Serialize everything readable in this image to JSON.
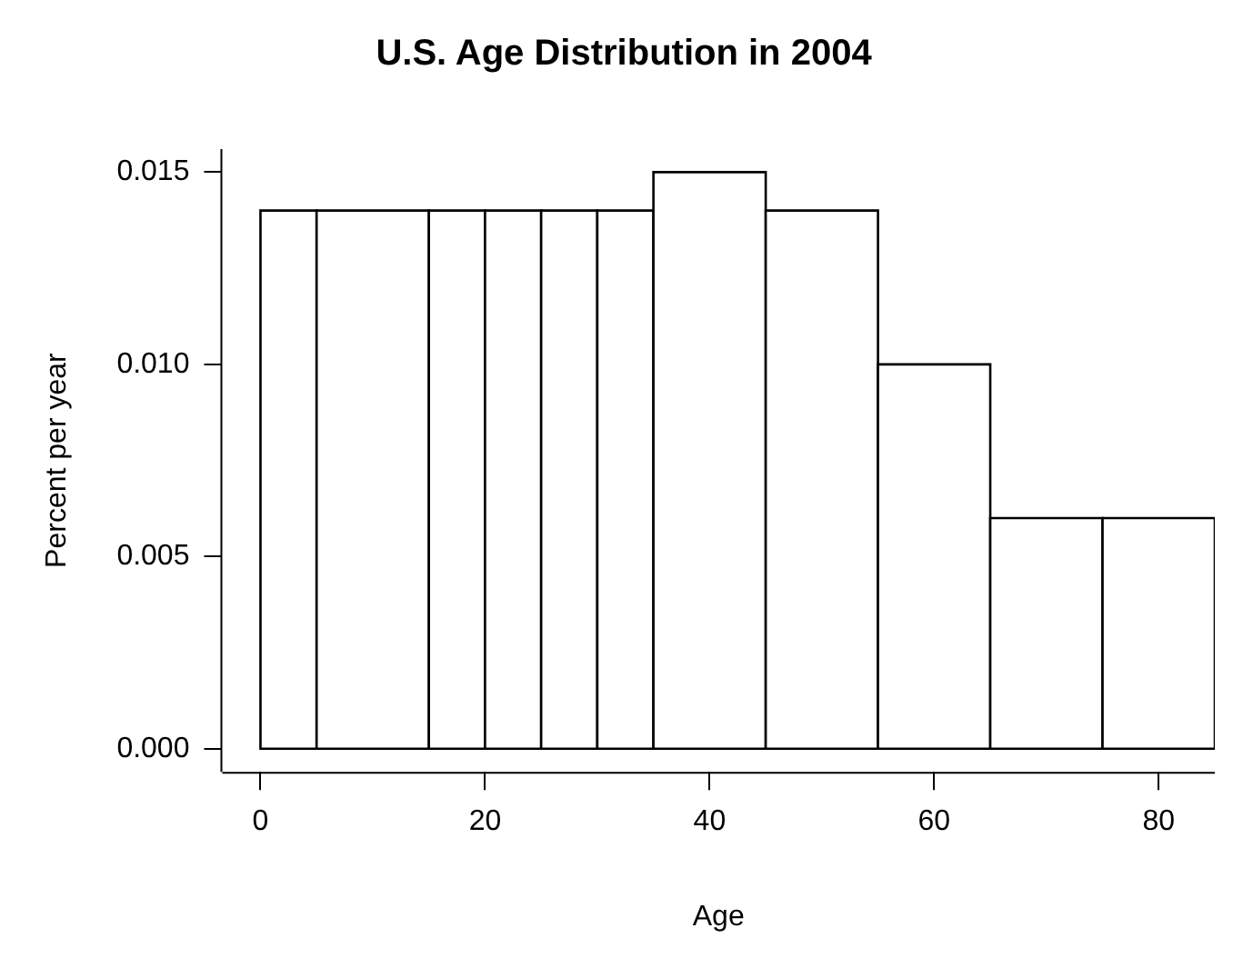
{
  "chart_data": {
    "type": "histogram",
    "title": "U.S. Age Distribution in 2004",
    "xlabel": "Age",
    "ylabel": "Percent per year",
    "bins": [
      0,
      5,
      15,
      20,
      25,
      30,
      35,
      45,
      55,
      65,
      75,
      85
    ],
    "values": [
      0.014,
      0.014,
      0.014,
      0.014,
      0.014,
      0.014,
      0.015,
      0.014,
      0.01,
      0.006,
      0.006
    ],
    "color": "#ffffff",
    "xlim": [
      -3.4,
      85
    ],
    "xticks": [
      0,
      20,
      40,
      60,
      80
    ],
    "ylim": [
      -0.0006,
      0.0156
    ],
    "yticks": [
      {
        "value": 0,
        "label": "0.000"
      },
      {
        "value": 0.005,
        "label": "0.005"
      },
      {
        "value": 0.01,
        "label": "0.010"
      },
      {
        "value": 0.015,
        "label": "0.015"
      }
    ],
    "grid": false,
    "legend": false
  }
}
